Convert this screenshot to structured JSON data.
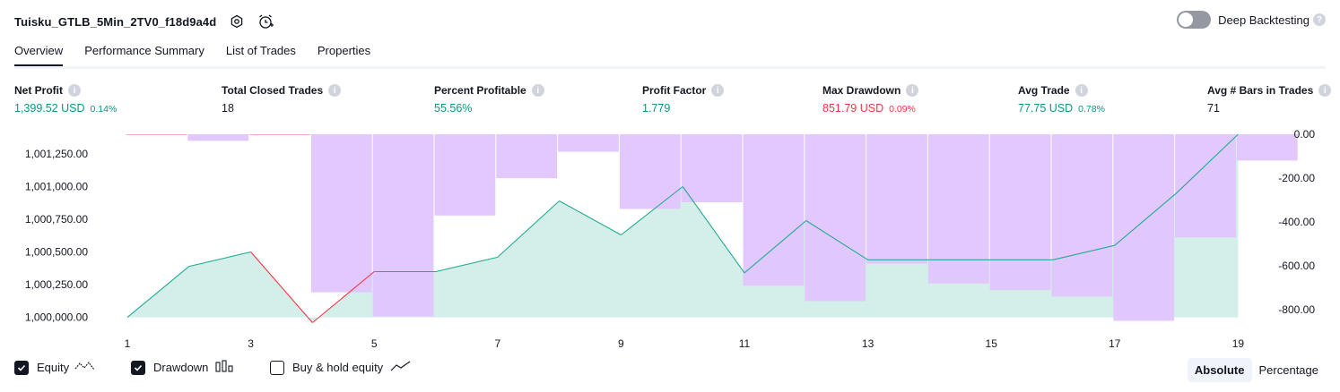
{
  "header": {
    "strategy_name": "Tuisku_GTLB_5Min_2TV0_f18d9a4d",
    "deep_backtesting_label": "Deep Backtesting"
  },
  "tabs": [
    "Overview",
    "Performance Summary",
    "List of Trades",
    "Properties"
  ],
  "metrics": {
    "net_profit": {
      "label": "Net Profit",
      "value": "1,399.52 USD",
      "pct": "0.14%"
    },
    "total_closed_trades": {
      "label": "Total Closed Trades",
      "value": "18"
    },
    "percent_profitable": {
      "label": "Percent Profitable",
      "value": "55.56%"
    },
    "profit_factor": {
      "label": "Profit Factor",
      "value": "1.779"
    },
    "max_drawdown": {
      "label": "Max Drawdown",
      "value": "851.79 USD",
      "pct": "0.09%"
    },
    "avg_trade": {
      "label": "Avg Trade",
      "value": "77.75 USD",
      "pct": "0.78%"
    },
    "avg_bars": {
      "label": "Avg # Bars in Trades",
      "value": "71"
    }
  },
  "legend": {
    "equity": "Equity",
    "drawdown": "Drawdown",
    "buy_hold": "Buy & hold equity"
  },
  "view_toggle": {
    "absolute": "Absolute",
    "percentage": "Percentage"
  },
  "colors": {
    "equity_line": "#22ab94",
    "equity_fill": "#d4efe9",
    "drawdown_bar": "#e0c5fd",
    "negative": "#f23645",
    "positive": "#089981"
  },
  "chart_data": {
    "type": "area",
    "x_ticks": [
      1,
      3,
      5,
      7,
      9,
      11,
      13,
      15,
      17,
      19
    ],
    "left_axis": {
      "ticks": [
        1000000,
        1000250,
        1000500,
        1000750,
        1001000,
        1001250
      ],
      "tick_labels": [
        "1,000,000.00",
        "1,000,250.00",
        "1,000,500.00",
        "1,000,750.00",
        "1,001,000.00",
        "1,001,250.00"
      ],
      "ylim": [
        999970,
        1001400
      ]
    },
    "right_axis": {
      "ticks": [
        0,
        -200,
        -400,
        -600,
        -800
      ],
      "tick_labels": [
        "0.00",
        "-200.00",
        "-400.00",
        "-600.00",
        "-800.00"
      ],
      "ylim": [
        -852,
        0
      ]
    },
    "series": [
      {
        "name": "Equity",
        "x": [
          1,
          2,
          3,
          4,
          5,
          6,
          7,
          8,
          9,
          10,
          11,
          12,
          13,
          14,
          15,
          16,
          17,
          18,
          19
        ],
        "values": [
          1000000,
          1000390,
          1000500,
          999960,
          1000350,
          1000350,
          1000460,
          1000890,
          1000630,
          1001000,
          1000340,
          1000740,
          1000440,
          1000440,
          1000440,
          1000440,
          1000550,
          1000950,
          1001400
        ]
      },
      {
        "name": "Drawdown",
        "x": [
          1,
          2,
          3,
          4,
          5,
          6,
          7,
          8,
          9,
          10,
          11,
          12,
          13,
          14,
          15,
          16,
          17,
          18,
          19
        ],
        "values": [
          0,
          -30,
          0,
          -720,
          -830,
          -370,
          -200,
          -80,
          -340,
          -310,
          -690,
          -760,
          -590,
          -680,
          -710,
          -740,
          -850,
          -470,
          -120
        ]
      }
    ]
  }
}
